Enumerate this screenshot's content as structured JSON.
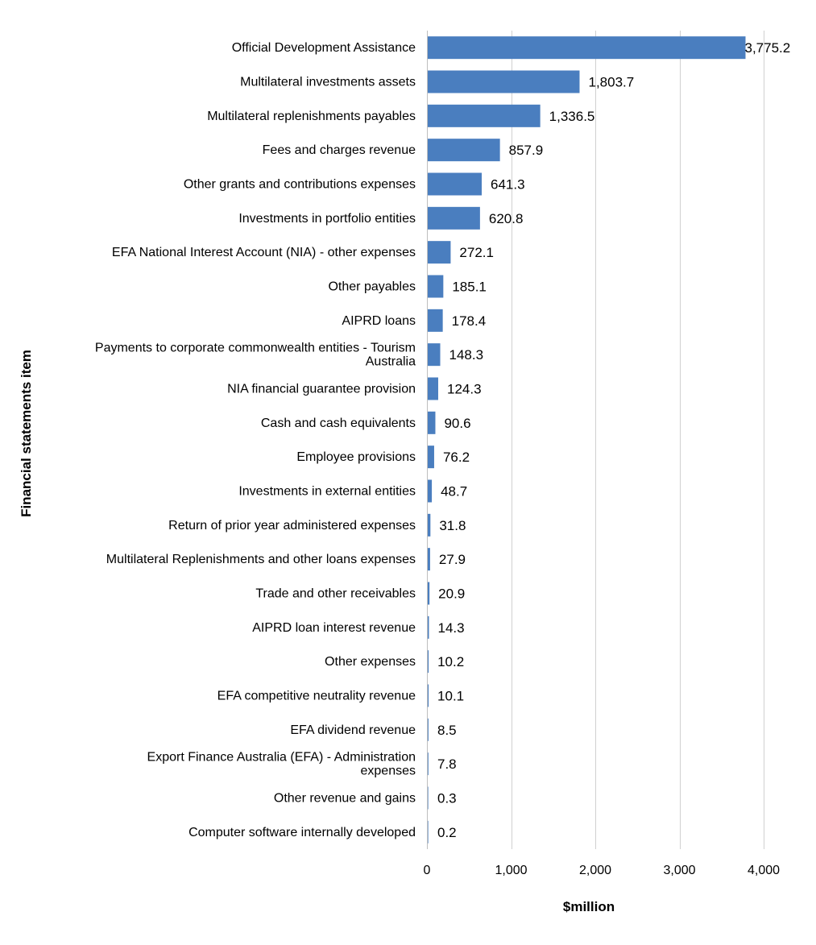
{
  "chart_data": {
    "type": "bar",
    "orientation": "horizontal",
    "categories": [
      "Official Development Assistance",
      "Multilateral investments assets",
      "Multilateral replenishments payables",
      "Fees and charges revenue",
      "Other grants and contributions expenses",
      "Investments in portfolio entities",
      "EFA National Interest Account (NIA) - other expenses",
      "Other payables",
      "AIPRD loans",
      "Payments to corporate commonwealth entities - Tourism Australia",
      "NIA financial guarantee provision",
      "Cash and cash equivalents",
      "Employee provisions",
      "Investments in external entities",
      "Return of prior year administered expenses",
      "Multilateral Replenishments and other loans expenses",
      "Trade and other receivables",
      "AIPRD loan interest revenue",
      "Other expenses",
      "EFA competitive neutrality revenue",
      "EFA dividend revenue",
      "Export Finance Australia (EFA) - Administration expenses",
      "Other revenue and gains",
      "Computer software internally developed"
    ],
    "values": [
      3775.2,
      1803.7,
      1336.5,
      857.9,
      641.3,
      620.8,
      272.1,
      185.1,
      178.4,
      148.3,
      124.3,
      90.6,
      76.2,
      48.7,
      31.8,
      27.9,
      20.9,
      14.3,
      10.2,
      10.1,
      8.5,
      7.8,
      0.3,
      0.2
    ],
    "value_labels": [
      "3,775.2",
      "1,803.7",
      "1,336.5",
      "857.9",
      "641.3",
      "620.8",
      "272.1",
      "185.1",
      "178.4",
      "148.3",
      "124.3",
      "90.6",
      "76.2",
      "48.7",
      "31.8",
      "27.9",
      "20.9",
      "14.3",
      "10.2",
      "10.1",
      "8.5",
      "7.8",
      "0.3",
      "0.2"
    ],
    "xlabel": "$million",
    "ylabel": "Financial statements item",
    "xlim": [
      0,
      4000
    ],
    "xticks": [
      0,
      1000,
      2000,
      3000,
      4000
    ],
    "xtick_labels": [
      "0",
      "1,000",
      "2,000",
      "3,000",
      "4,000"
    ],
    "grid": "vertical",
    "legend": "none",
    "bar_color": "#4a7ebf"
  }
}
